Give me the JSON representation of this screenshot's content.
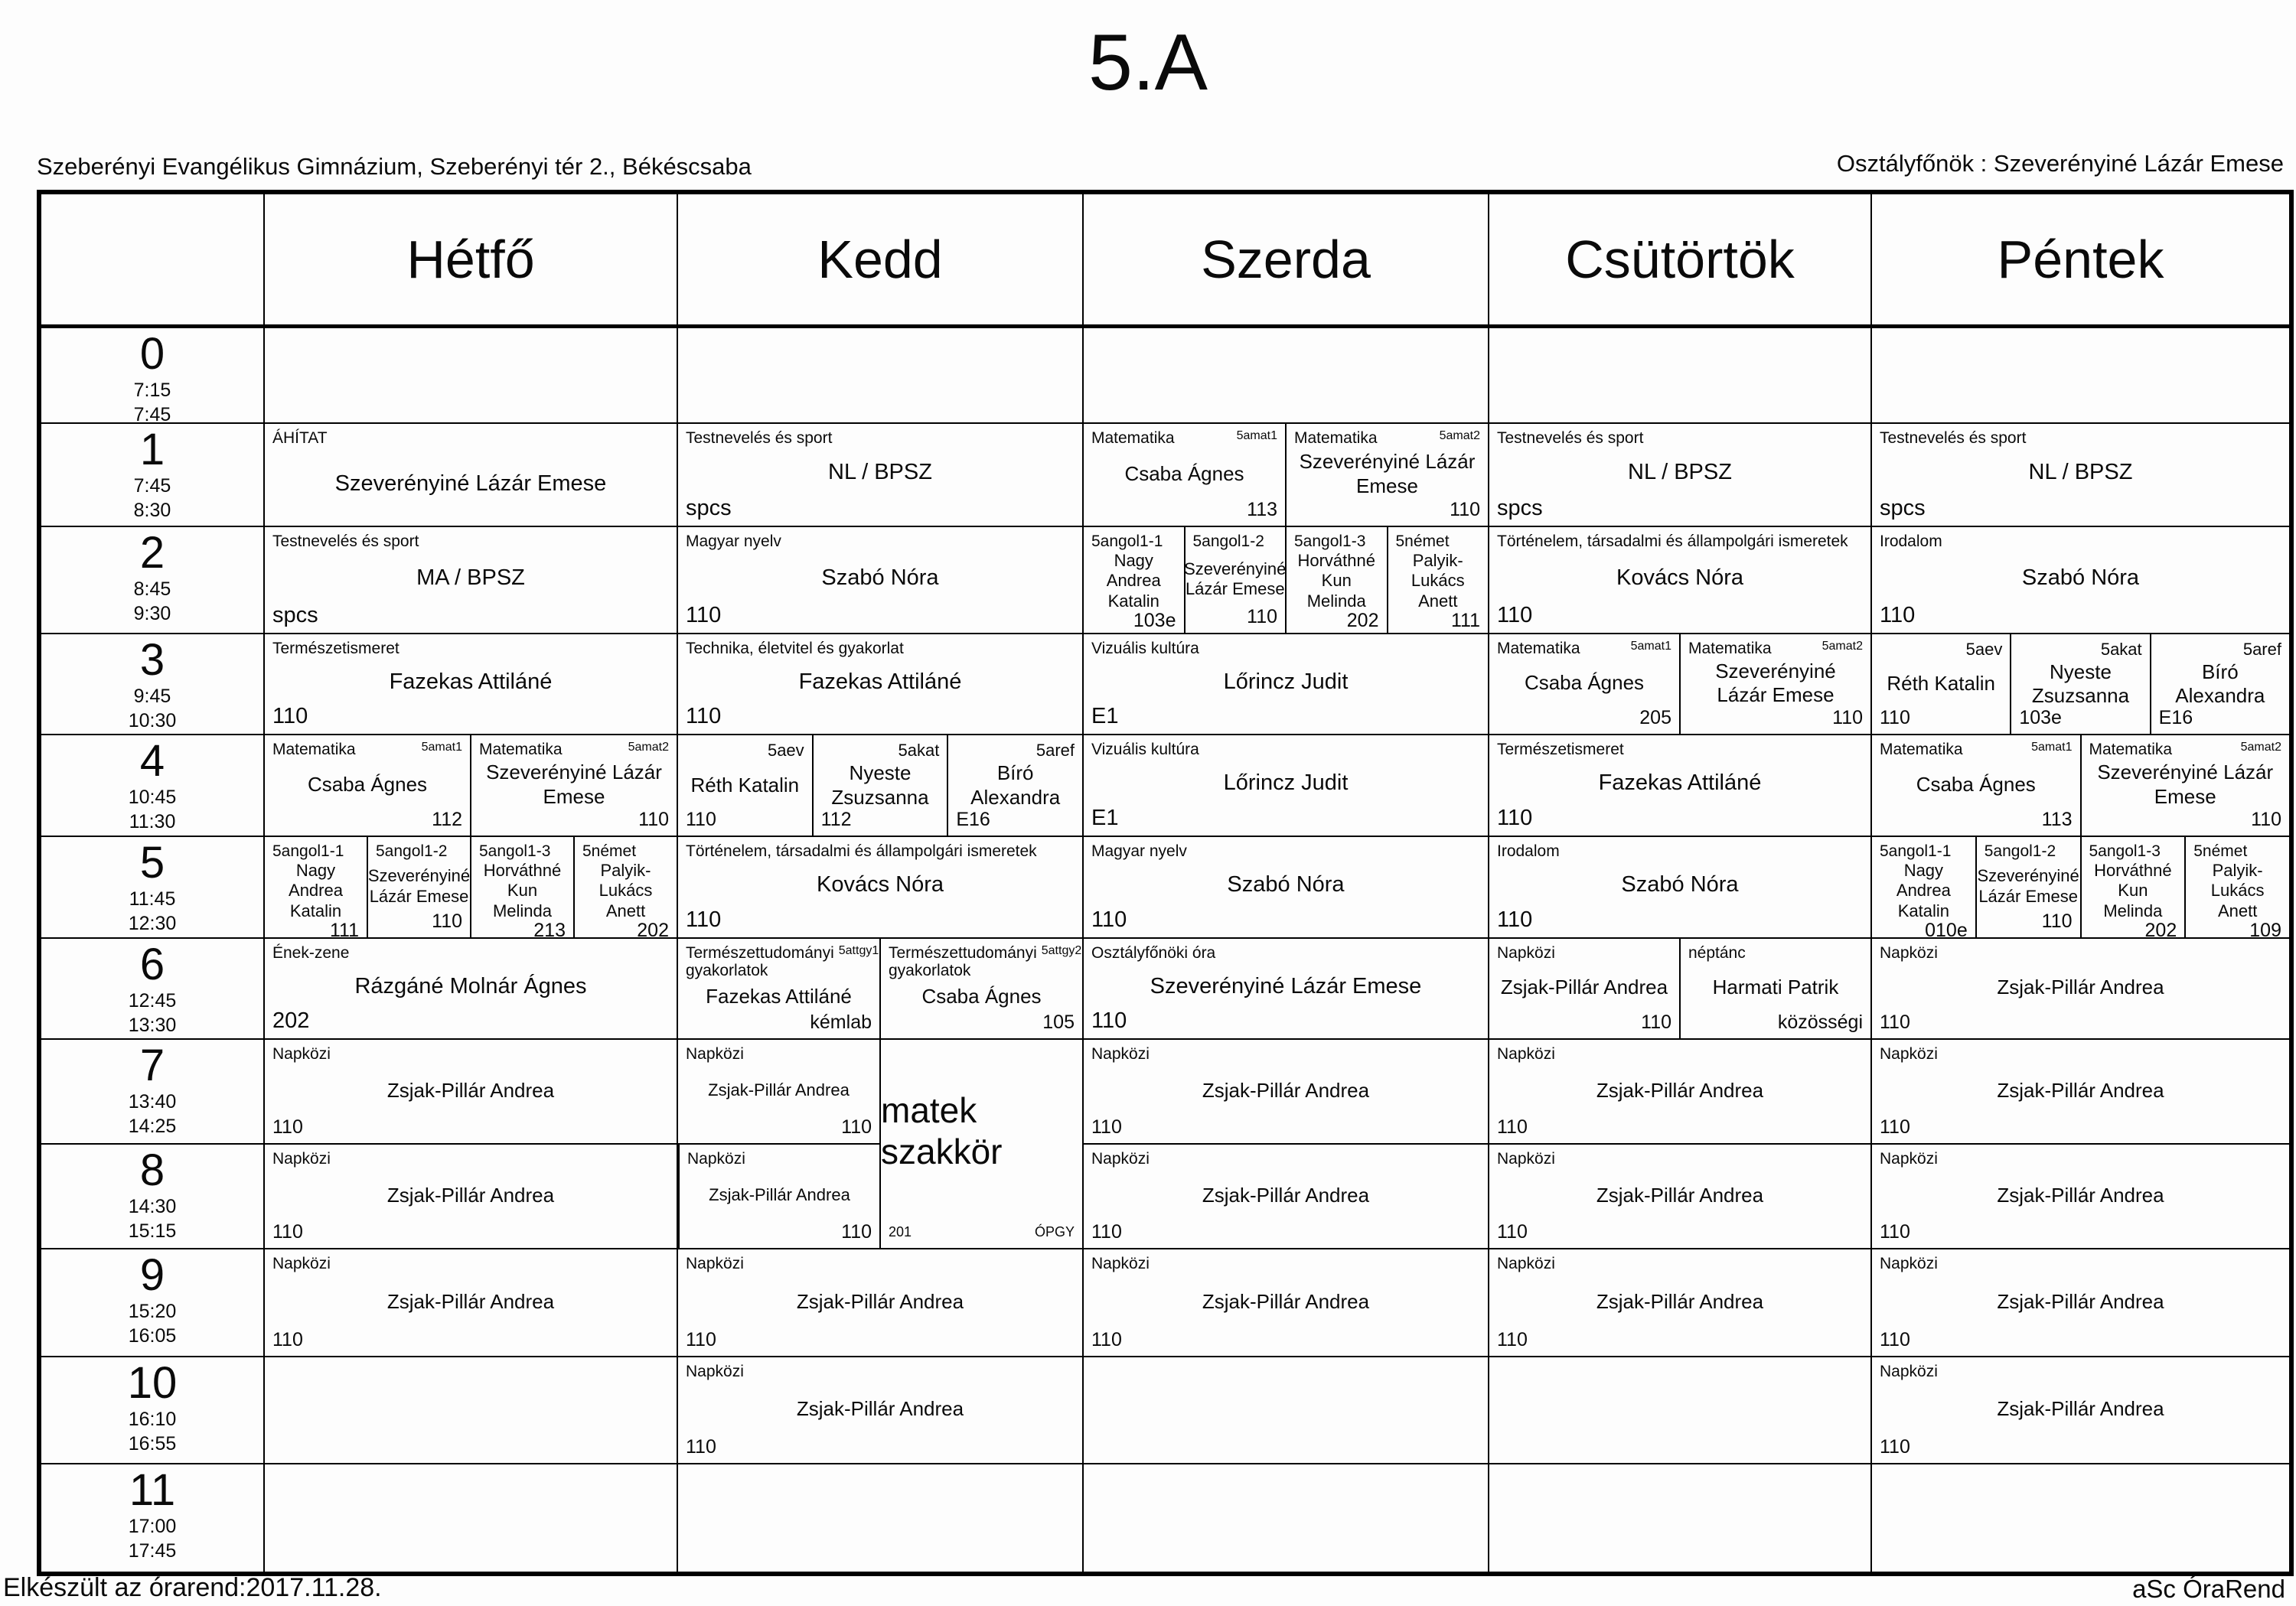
{
  "header": {
    "title": "5.A",
    "school": "Szeberényi Evangélikus Gimnázium, Szeberényi tér 2., Békéscsaba",
    "class_teacher": "Osztályfőnök : Szeverényiné Lázár Emese"
  },
  "days": [
    "Hétfő",
    "Kedd",
    "Szerda",
    "Csütörtök",
    "Péntek"
  ],
  "day_keys": [
    "hetfo",
    "kedd",
    "szerda",
    "csutortok",
    "pentek"
  ],
  "footer": {
    "left": "Elkészült az órarend:2017.11.28.",
    "right": "aSc ÓraRend"
  },
  "rows": [
    {
      "num": "0",
      "start": "7:15",
      "end": "7:45",
      "cells": [
        null,
        null,
        null,
        null,
        null
      ]
    },
    {
      "num": "1",
      "start": "7:45",
      "end": "8:30",
      "cells": [
        {
          "parts": [
            {
              "subject": "ÁHÍTAT",
              "teacher": "Szeverényiné Lázár Emese"
            }
          ]
        },
        {
          "parts": [
            {
              "subject": "Testnevelés és sport",
              "teacher": "NL / BPSZ",
              "room": "spcs"
            }
          ]
        },
        {
          "parts": [
            {
              "subject": "Matematika",
              "group": "5amat1",
              "teacher": "Csaba Ágnes",
              "size": "s",
              "room": "113",
              "align": "r"
            },
            {
              "subject": "Matematika",
              "group": "5amat2",
              "teacher": "Szeverényiné Lázár Emese",
              "size": "s",
              "room": "110",
              "align": "r"
            }
          ]
        },
        {
          "parts": [
            {
              "subject": "Testnevelés és sport",
              "teacher": "NL / BPSZ",
              "room": "spcs"
            }
          ]
        },
        {
          "parts": [
            {
              "subject": "Testnevelés és sport",
              "teacher": "NL / BPSZ",
              "room": "spcs"
            }
          ]
        }
      ]
    },
    {
      "num": "2",
      "start": "8:45",
      "end": "9:30",
      "cells": [
        {
          "parts": [
            {
              "subject": "Testnevelés és sport",
              "teacher": "MA / BPSZ",
              "room": "spcs"
            }
          ]
        },
        {
          "parts": [
            {
              "subject": "Magyar nyelv",
              "teacher": "Szabó Nóra",
              "room": "110"
            }
          ]
        },
        {
          "parts": [
            {
              "subject": "5angol1-1",
              "teacher": "Nagy Andrea Katalin",
              "size": "xs",
              "room": "103e",
              "align": "r"
            },
            {
              "subject": "5angol1-2",
              "teacher": "Szeverényiné Lázár Emese",
              "size": "xs",
              "room": "110",
              "align": "r"
            },
            {
              "subject": "5angol1-3",
              "teacher": "Horváthné Kun Melinda",
              "size": "xs",
              "room": "202",
              "align": "r"
            },
            {
              "subject": "5német",
              "teacher": "Palyik-Lukács Anett",
              "size": "xs",
              "room": "111",
              "align": "r"
            }
          ]
        },
        {
          "parts": [
            {
              "subject": "Történelem, társadalmi és állampolgári ismeretek",
              "teacher": "Kovács Nóra",
              "room": "110"
            }
          ]
        },
        {
          "parts": [
            {
              "subject": "Irodalom",
              "teacher": "Szabó Nóra",
              "room": "110"
            }
          ]
        }
      ]
    },
    {
      "num": "3",
      "start": "9:45",
      "end": "10:30",
      "cells": [
        {
          "parts": [
            {
              "subject": "Természetismeret",
              "teacher": "Fazekas Attiláné",
              "room": "110"
            }
          ]
        },
        {
          "parts": [
            {
              "subject": "Technika, életvitel és gyakorlat",
              "teacher": "Fazekas Attiláné",
              "room": "110"
            }
          ]
        },
        {
          "parts": [
            {
              "subject": "Vizuális kultúra",
              "teacher": "Lőrincz Judit",
              "room": "E1"
            }
          ]
        },
        {
          "parts": [
            {
              "subject": "Matematika",
              "group": "5amat1",
              "teacher": "Csaba Ágnes",
              "size": "s",
              "room": "205",
              "align": "r"
            },
            {
              "subject": "Matematika",
              "group": "5amat2",
              "teacher": "Szeverényiné Lázár Emese",
              "size": "s",
              "room": "110",
              "align": "r"
            }
          ]
        },
        {
          "parts": [
            {
              "group": "5aev",
              "teacher": "Réth Katalin",
              "size": "s",
              "room": "110"
            },
            {
              "group": "5akat",
              "teacher": "Nyeste Zsuzsanna",
              "size": "s",
              "room": "103e"
            },
            {
              "group": "5aref",
              "teacher": "Bíró Alexandra",
              "size": "s",
              "room": "E16"
            }
          ]
        }
      ]
    },
    {
      "num": "4",
      "start": "10:45",
      "end": "11:30",
      "cells": [
        {
          "parts": [
            {
              "subject": "Matematika",
              "group": "5amat1",
              "teacher": "Csaba Ágnes",
              "size": "s",
              "room": "112",
              "align": "r"
            },
            {
              "subject": "Matematika",
              "group": "5amat2",
              "teacher": "Szeverényiné Lázár Emese",
              "size": "s",
              "room": "110",
              "align": "r"
            }
          ]
        },
        {
          "parts": [
            {
              "group": "5aev",
              "teacher": "Réth Katalin",
              "size": "s",
              "room": "110"
            },
            {
              "group": "5akat",
              "teacher": "Nyeste Zsuzsanna",
              "size": "s",
              "room": "112"
            },
            {
              "group": "5aref",
              "teacher": "Bíró Alexandra",
              "size": "s",
              "room": "E16"
            }
          ]
        },
        {
          "parts": [
            {
              "subject": "Vizuális kultúra",
              "teacher": "Lőrincz Judit",
              "room": "E1"
            }
          ]
        },
        {
          "parts": [
            {
              "subject": "Természetismeret",
              "teacher": "Fazekas Attiláné",
              "room": "110"
            }
          ]
        },
        {
          "parts": [
            {
              "subject": "Matematika",
              "group": "5amat1",
              "teacher": "Csaba Ágnes",
              "size": "s",
              "room": "113",
              "align": "r"
            },
            {
              "subject": "Matematika",
              "group": "5amat2",
              "teacher": "Szeverényiné Lázár Emese",
              "size": "s",
              "room": "110",
              "align": "r"
            }
          ]
        }
      ]
    },
    {
      "num": "5",
      "start": "11:45",
      "end": "12:30",
      "cells": [
        {
          "parts": [
            {
              "subject": "5angol1-1",
              "teacher": "Nagy Andrea Katalin",
              "size": "xs",
              "room": "111",
              "align": "r"
            },
            {
              "subject": "5angol1-2",
              "teacher": "Szeverényiné Lázár Emese",
              "size": "xs",
              "room": "110",
              "align": "r"
            },
            {
              "subject": "5angol1-3",
              "teacher": "Horváthné Kun Melinda",
              "size": "xs",
              "room": "213",
              "align": "r"
            },
            {
              "subject": "5német",
              "teacher": "Palyik-Lukács Anett",
              "size": "xs",
              "room": "202",
              "align": "r"
            }
          ]
        },
        {
          "parts": [
            {
              "subject": "Történelem, társadalmi és állampolgári ismeretek",
              "teacher": "Kovács Nóra",
              "room": "110"
            }
          ]
        },
        {
          "parts": [
            {
              "subject": "Magyar nyelv",
              "teacher": "Szabó Nóra",
              "room": "110"
            }
          ]
        },
        {
          "parts": [
            {
              "subject": "Irodalom",
              "teacher": "Szabó Nóra",
              "room": "110"
            }
          ]
        },
        {
          "parts": [
            {
              "subject": "5angol1-1",
              "teacher": "Nagy Andrea Katalin",
              "size": "xs",
              "room": "010e",
              "align": "r"
            },
            {
              "subject": "5angol1-2",
              "teacher": "Szeverényiné Lázár Emese",
              "size": "xs",
              "room": "110",
              "align": "r"
            },
            {
              "subject": "5angol1-3",
              "teacher": "Horváthné Kun Melinda",
              "size": "xs",
              "room": "202",
              "align": "r"
            },
            {
              "subject": "5német",
              "teacher": "Palyik-Lukács Anett",
              "size": "xs",
              "room": "109",
              "align": "r"
            }
          ]
        }
      ]
    },
    {
      "num": "6",
      "start": "12:45",
      "end": "13:30",
      "cells": [
        {
          "parts": [
            {
              "subject": "Ének-zene",
              "teacher": "Rázgáné Molnár Ágnes",
              "room": "202"
            }
          ]
        },
        {
          "parts": [
            {
              "subject": "Természettudományi gyakorlatok",
              "group": "5attgy1",
              "teacher": "Fazekas Attiláné",
              "size": "s",
              "room": "kémlab",
              "align": "r"
            },
            {
              "subject": "Természettudományi gyakorlatok",
              "group": "5attgy2",
              "teacher": "Csaba Ágnes",
              "size": "s",
              "room": "105",
              "align": "r"
            }
          ]
        },
        {
          "parts": [
            {
              "subject": "Osztályfőnöki óra",
              "teacher": "Szeverényiné Lázár Emese",
              "room": "110"
            }
          ]
        },
        {
          "parts": [
            {
              "subject": "Napközi",
              "teacher": "Zsjak-Pillár Andrea",
              "size": "s",
              "room": "110",
              "align": "r"
            },
            {
              "subject": "néptánc",
              "teacher": "Harmati Patrik",
              "size": "s",
              "room": "közösségi",
              "align": "r"
            }
          ]
        },
        {
          "parts": [
            {
              "subject": "Napközi",
              "teacher": "Zsjak-Pillár Andrea",
              "size": "s",
              "room": "110"
            }
          ]
        }
      ]
    },
    {
      "num": "7",
      "start": "13:40",
      "end": "14:25",
      "cells": [
        {
          "parts": [
            {
              "subject": "Napközi",
              "teacher": "Zsjak-Pillár Andrea",
              "size": "s",
              "room": "110"
            }
          ]
        },
        {
          "span2": true,
          "left": [
            {
              "subject": "Napközi",
              "teacher": "Zsjak-Pillár Andrea",
              "size": "xs",
              "room": "110",
              "align": "r"
            },
            {
              "subject": "Napközi",
              "teacher": "Zsjak-Pillár Andrea",
              "size": "xs",
              "room": "110",
              "align": "r"
            }
          ],
          "right": {
            "title": "matek szakkör",
            "bottom_left": "201",
            "bottom_right": "ÓPGY"
          }
        },
        {
          "parts": [
            {
              "subject": "Napközi",
              "teacher": "Zsjak-Pillár Andrea",
              "size": "s",
              "room": "110"
            }
          ]
        },
        {
          "parts": [
            {
              "subject": "Napközi",
              "teacher": "Zsjak-Pillár Andrea",
              "size": "s",
              "room": "110"
            }
          ]
        },
        {
          "parts": [
            {
              "subject": "Napközi",
              "teacher": "Zsjak-Pillár Andrea",
              "size": "s",
              "room": "110"
            }
          ]
        }
      ]
    },
    {
      "num": "8",
      "start": "14:30",
      "end": "15:15",
      "cells": [
        {
          "parts": [
            {
              "subject": "Napközi",
              "teacher": "Zsjak-Pillár Andrea",
              "size": "s",
              "room": "110"
            }
          ]
        },
        {
          "skip": true
        },
        {
          "parts": [
            {
              "subject": "Napközi",
              "teacher": "Zsjak-Pillár Andrea",
              "size": "s",
              "room": "110"
            }
          ]
        },
        {
          "parts": [
            {
              "subject": "Napközi",
              "teacher": "Zsjak-Pillár Andrea",
              "size": "s",
              "room": "110"
            }
          ]
        },
        {
          "parts": [
            {
              "subject": "Napközi",
              "teacher": "Zsjak-Pillár Andrea",
              "size": "s",
              "room": "110"
            }
          ]
        }
      ]
    },
    {
      "num": "9",
      "start": "15:20",
      "end": "16:05",
      "cells": [
        {
          "parts": [
            {
              "subject": "Napközi",
              "teacher": "Zsjak-Pillár Andrea",
              "size": "s",
              "room": "110"
            }
          ]
        },
        {
          "parts": [
            {
              "subject": "Napközi",
              "teacher": "Zsjak-Pillár Andrea",
              "size": "s",
              "room": "110"
            }
          ]
        },
        {
          "parts": [
            {
              "subject": "Napközi",
              "teacher": "Zsjak-Pillár Andrea",
              "size": "s",
              "room": "110"
            }
          ]
        },
        {
          "parts": [
            {
              "subject": "Napközi",
              "teacher": "Zsjak-Pillár Andrea",
              "size": "s",
              "room": "110"
            }
          ]
        },
        {
          "parts": [
            {
              "subject": "Napközi",
              "teacher": "Zsjak-Pillár Andrea",
              "size": "s",
              "room": "110"
            }
          ]
        }
      ]
    },
    {
      "num": "10",
      "start": "16:10",
      "end": "16:55",
      "cells": [
        null,
        {
          "parts": [
            {
              "subject": "Napközi",
              "teacher": "Zsjak-Pillár Andrea",
              "size": "s",
              "room": "110"
            }
          ]
        },
        null,
        null,
        {
          "parts": [
            {
              "subject": "Napközi",
              "teacher": "Zsjak-Pillár Andrea",
              "size": "s",
              "room": "110"
            }
          ]
        }
      ]
    },
    {
      "num": "11",
      "start": "17:00",
      "end": "17:45",
      "cells": [
        null,
        null,
        null,
        null,
        null
      ]
    }
  ]
}
